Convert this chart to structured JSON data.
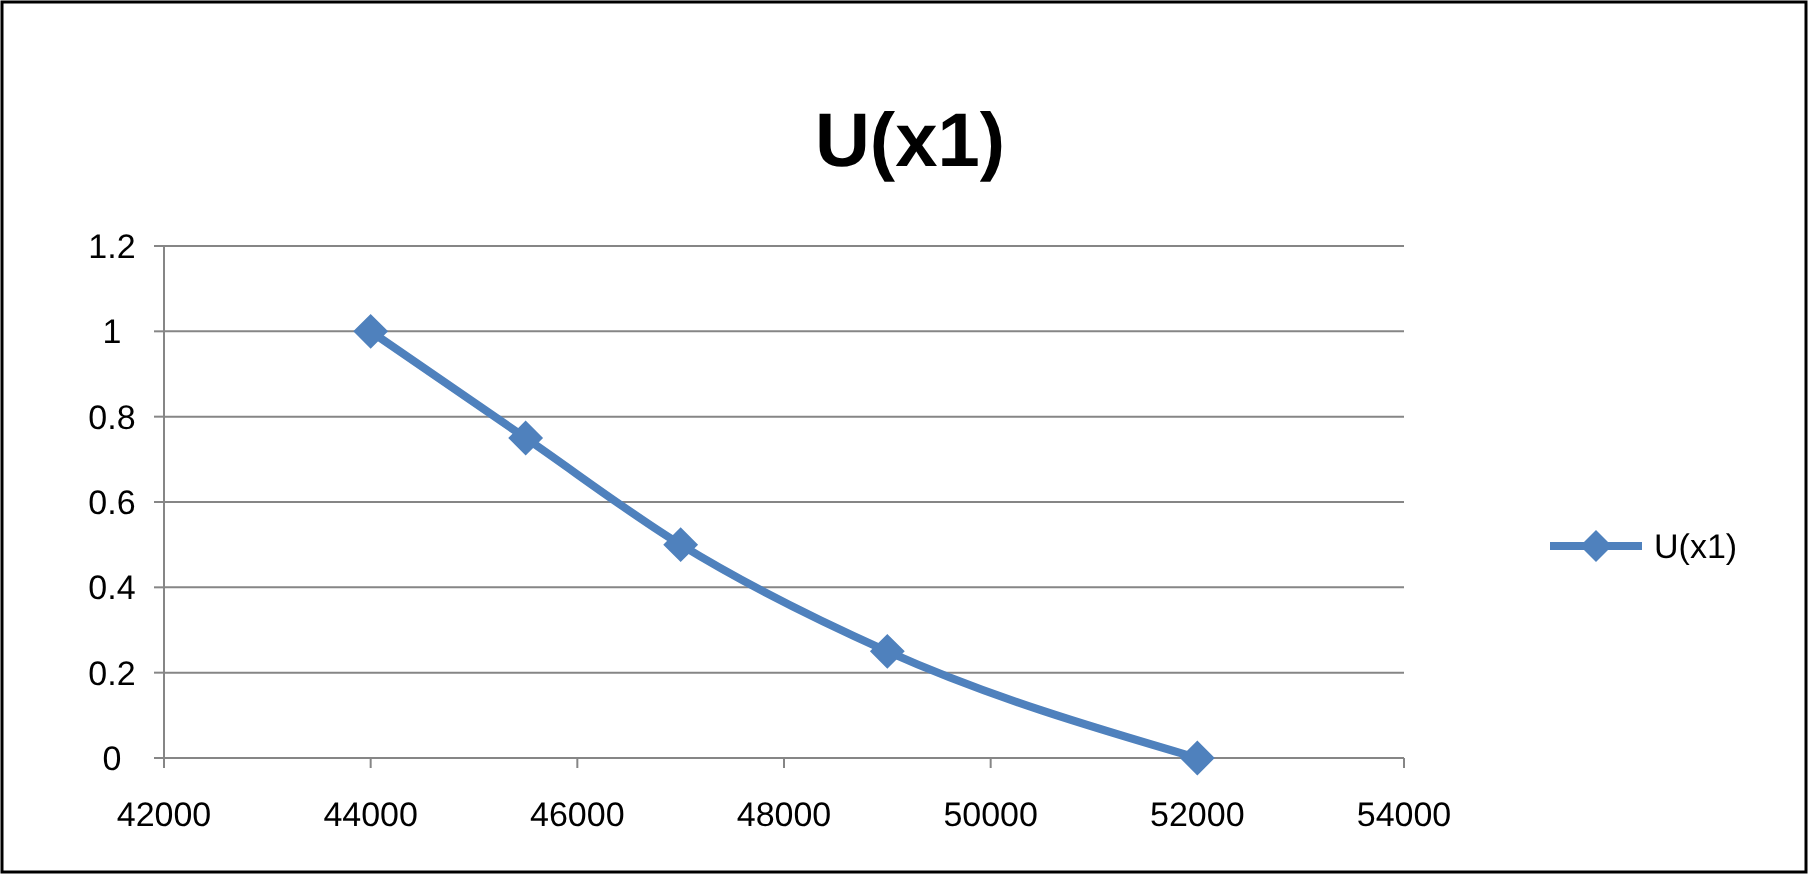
{
  "chart_data": {
    "type": "line",
    "title": "U(x1)",
    "x": [
      44000,
      45500,
      47000,
      49000,
      52000
    ],
    "series": [
      {
        "name": "U(x1)",
        "color": "#4f81bd",
        "values": [
          1,
          0.75,
          0.5,
          0.25,
          0
        ]
      }
    ],
    "xlim": [
      42000,
      54000
    ],
    "xticks": [
      42000,
      44000,
      46000,
      48000,
      50000,
      52000,
      54000
    ],
    "ylim": [
      0,
      1.2
    ],
    "yticks": [
      0,
      0.2,
      0.4,
      0.6,
      0.8,
      1,
      1.2
    ],
    "grid": "y",
    "legend": "right",
    "marker": "diamond",
    "line_style": "solid"
  }
}
